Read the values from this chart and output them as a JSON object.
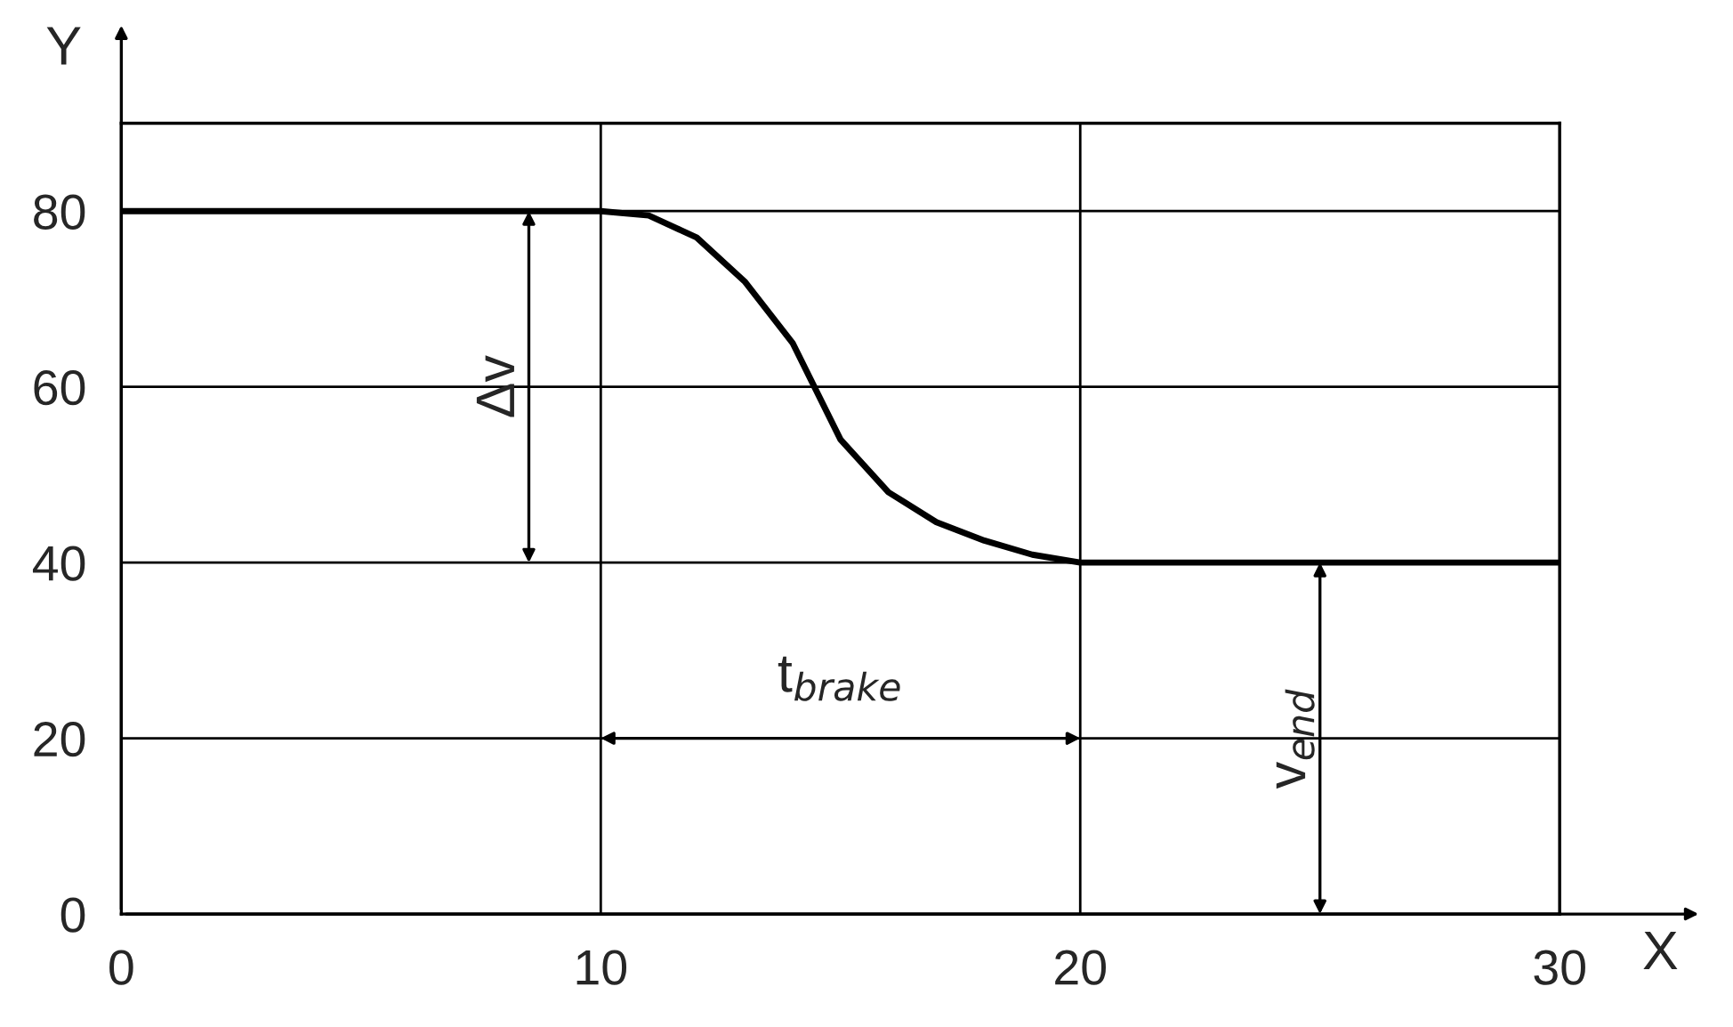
{
  "chart_data": {
    "type": "line",
    "xlabel": "X",
    "ylabel": "Y",
    "x": [
      0,
      10,
      11,
      12,
      13,
      14,
      15,
      16,
      17,
      18,
      19,
      20,
      30
    ],
    "series": [
      {
        "color": "#000000",
        "values": [
          80,
          80,
          79.5,
          77,
          72,
          65,
          54,
          48,
          44.6,
          42.5,
          40.9,
          40,
          40
        ]
      }
    ],
    "xlim": [
      0,
      30
    ],
    "ylim": [
      0,
      90
    ],
    "xticks": [
      0,
      10,
      20,
      30
    ],
    "yticks": [
      0,
      20,
      40,
      60,
      80
    ],
    "grid": true,
    "marker": "none",
    "line_style": "solid",
    "annotations": [
      "Δv",
      "t$_{brake}$",
      "v$_{end}$"
    ]
  }
}
